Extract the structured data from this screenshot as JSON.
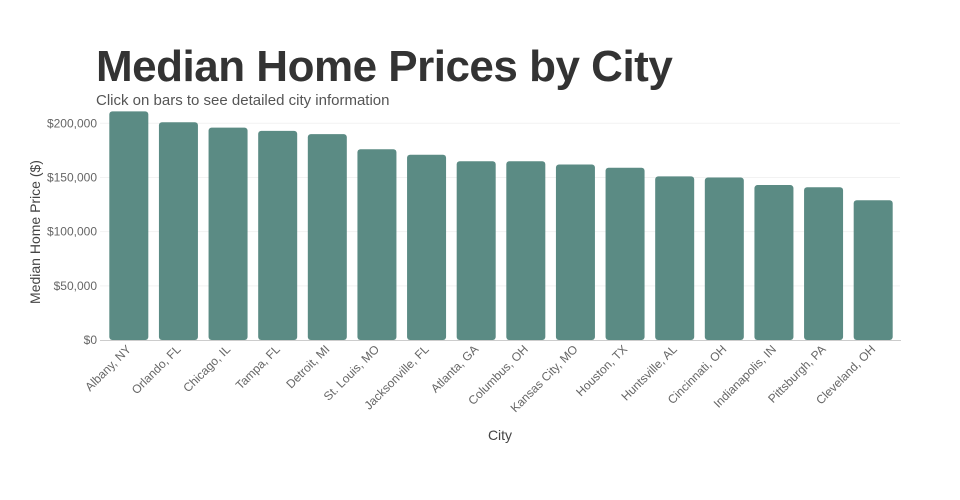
{
  "chart_data": {
    "type": "bar",
    "title": "Median Home Prices by City",
    "subtitle": "Click on bars to see detailed city information",
    "xlabel": "City",
    "ylabel": "Median Home Price ($)",
    "ylim": [
      0,
      200000
    ],
    "yticks": [
      0,
      50000,
      100000,
      150000,
      200000
    ],
    "ytick_labels": [
      "$0",
      "$50,000",
      "$100,000",
      "$150,000",
      "$200,000"
    ],
    "grid": true,
    "categories": [
      "Albany, NY",
      "Orlando, FL",
      "Chicago, IL",
      "Tampa, FL",
      "Detroit, MI",
      "St. Louis, MO",
      "Jacksonville, FL",
      "Atlanta, GA",
      "Columbus, OH",
      "Kansas City, MO",
      "Houston, TX",
      "Huntsville, AL",
      "Cincinnati, OH",
      "Indianapolis, IN",
      "Pittsburgh, PA",
      "Cleveland, OH"
    ],
    "values": [
      211000,
      201000,
      196000,
      193000,
      190000,
      176000,
      171000,
      165000,
      165000,
      162000,
      159000,
      151000,
      150000,
      143000,
      141000,
      129000
    ],
    "bar_color": "#5b8b84"
  }
}
